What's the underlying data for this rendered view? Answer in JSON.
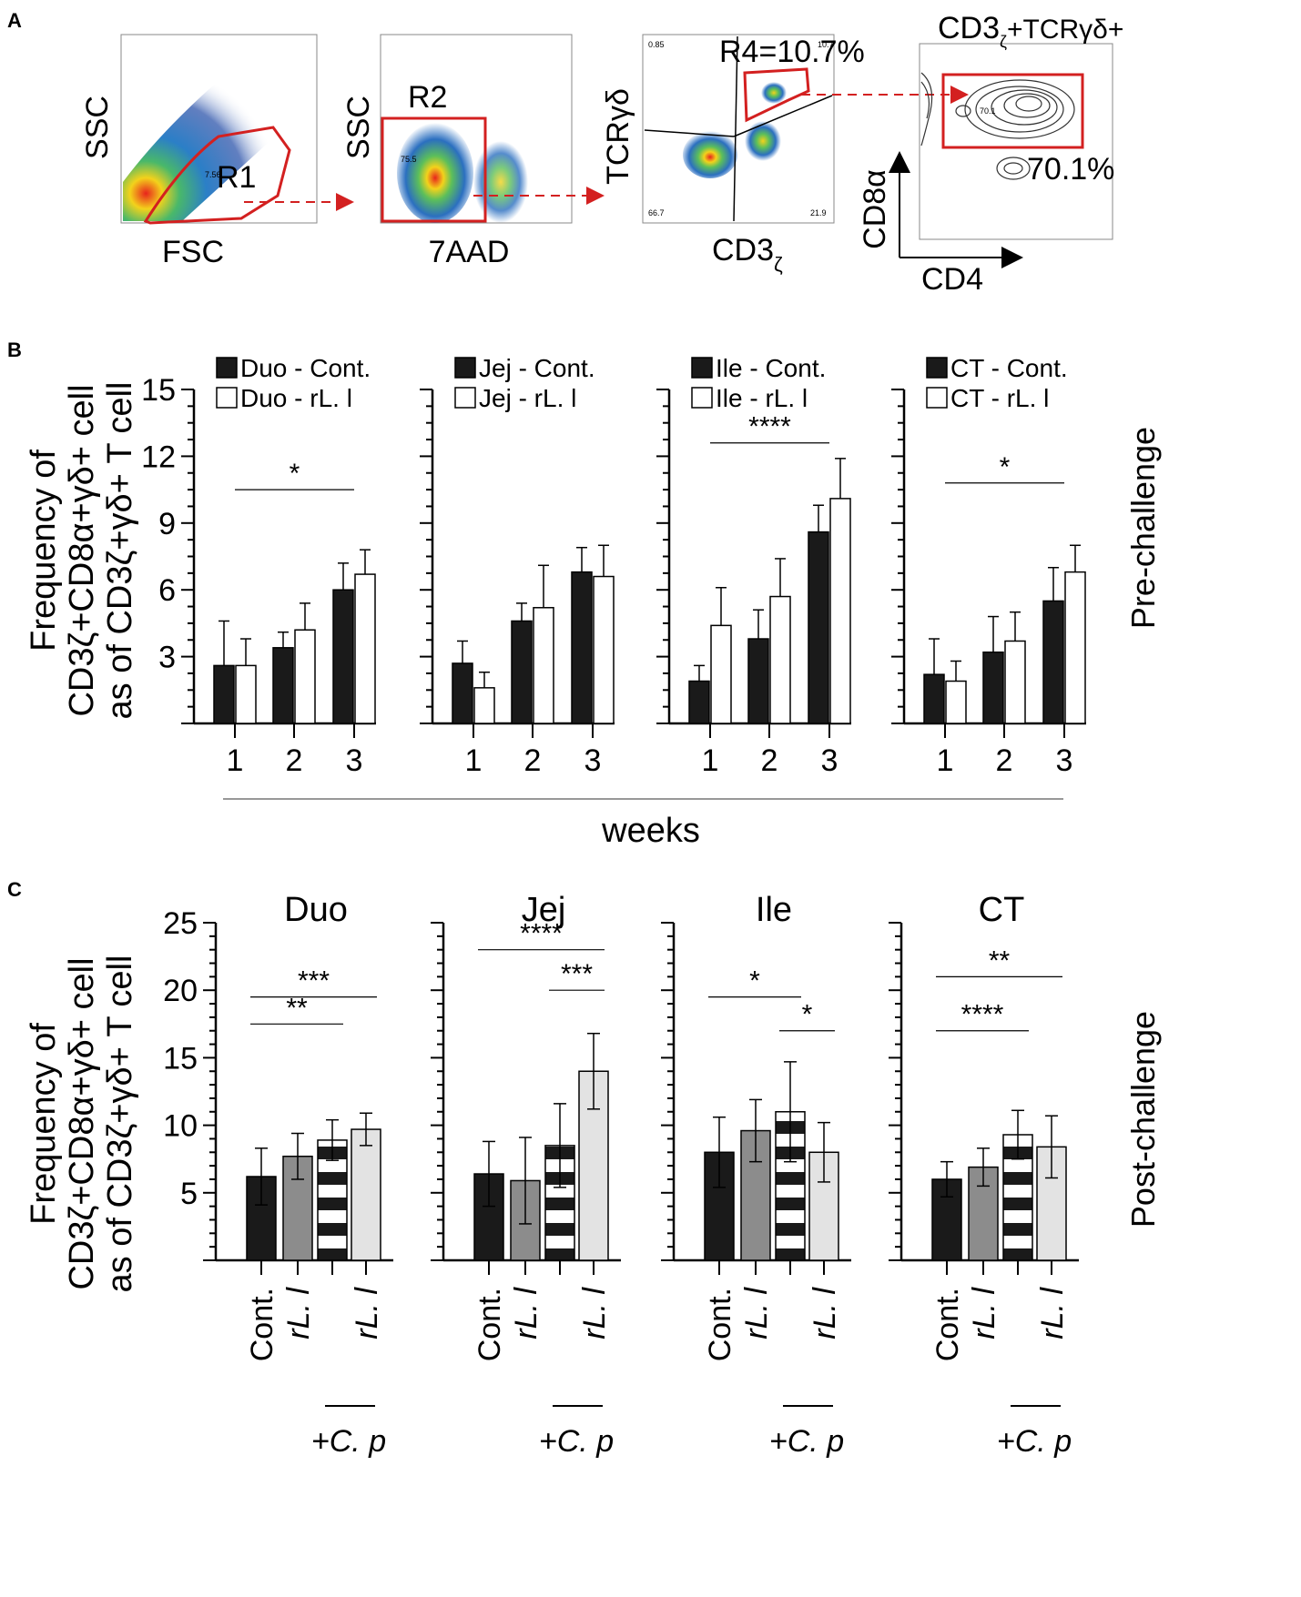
{
  "panels": {
    "a": "A",
    "b": "B",
    "c": "C"
  },
  "flow": {
    "plots": [
      {
        "xlabel": "FSC",
        "ylabel": "SSC",
        "gate": "R1",
        "gate_value": "7.56"
      },
      {
        "xlabel": "7AAD",
        "ylabel": "SSC",
        "gate": "R2",
        "gate_value": "75.5"
      },
      {
        "xlabel": "CD3",
        "xlabel_sub": "ζ",
        "ylabel": "TCRγδ",
        "gate": "R4=10.7%",
        "quadrants": [
          "0.85",
          "10.7",
          "66.7",
          "21.9"
        ]
      },
      {
        "title_main": "CD3",
        "title_sub": "ζ",
        "title_rest": "+TCRγδ+",
        "xlabel": "CD4",
        "ylabel": "CD8α",
        "gate_value": "70.1",
        "percent": "70.1%"
      }
    ]
  },
  "chart_data": [
    {
      "type": "bar",
      "panel": "B",
      "side_label": "Pre-challenge",
      "y_label_line1": "Frequency of",
      "y_label_line2": "CD3ζ+CD8α+γδ+ cell",
      "y_label_line3": "as of CD3ζ+γδ+ T cell",
      "xlabel": "weeks",
      "ylim": [
        0,
        15
      ],
      "yticks": [
        "3",
        "6",
        "9",
        "12",
        "15"
      ],
      "categories": [
        "1",
        "2",
        "3"
      ],
      "groups": [
        {
          "name": "Duo",
          "legend": [
            "Duo - Cont.",
            "Duo - rL. l"
          ],
          "series": [
            {
              "name": "Cont.",
              "values": [
                2.6,
                3.4,
                6.0
              ],
              "errors": [
                2.0,
                0.7,
                1.2
              ]
            },
            {
              "name": "rL. l",
              "values": [
                2.6,
                4.2,
                6.7
              ],
              "errors": [
                1.2,
                1.2,
                1.1
              ]
            }
          ],
          "sig": {
            "label": "*",
            "from": 0,
            "to": 2,
            "y": 10.5
          }
        },
        {
          "name": "Jej",
          "legend": [
            "Jej - Cont.",
            "Jej - rL. l"
          ],
          "series": [
            {
              "name": "Cont.",
              "values": [
                2.7,
                4.6,
                6.8
              ],
              "errors": [
                1.0,
                0.8,
                1.1
              ]
            },
            {
              "name": "rL. l",
              "values": [
                1.6,
                5.2,
                6.6
              ],
              "errors": [
                0.7,
                1.9,
                1.4
              ]
            }
          ],
          "sig": null
        },
        {
          "name": "Ile",
          "legend": [
            "Ile - Cont.",
            "Ile - rL. l"
          ],
          "series": [
            {
              "name": "Cont.",
              "values": [
                1.9,
                3.8,
                8.6
              ],
              "errors": [
                0.7,
                1.3,
                1.2
              ]
            },
            {
              "name": "rL. l",
              "values": [
                4.4,
                5.7,
                10.1
              ],
              "errors": [
                1.7,
                1.7,
                1.8
              ]
            }
          ],
          "sig": {
            "label": "****",
            "from": 0,
            "to": 2,
            "y": 12.6
          }
        },
        {
          "name": "CT",
          "legend": [
            "CT - Cont.",
            "CT - rL. l"
          ],
          "series": [
            {
              "name": "Cont.",
              "values": [
                2.2,
                3.2,
                5.5
              ],
              "errors": [
                1.6,
                1.6,
                1.5
              ]
            },
            {
              "name": "rL. l",
              "values": [
                1.9,
                3.7,
                6.8
              ],
              "errors": [
                0.9,
                1.3,
                1.2
              ]
            }
          ],
          "sig": {
            "label": "*",
            "from": 0,
            "to": 2,
            "y": 10.8
          }
        }
      ]
    },
    {
      "type": "bar",
      "panel": "C",
      "side_label": "Post-challenge",
      "y_label_line1": "Frequency of",
      "y_label_line2": "CD3ζ+CD8α+γδ+ cell",
      "y_label_line3": "as of CD3ζ+γδ+ T cell",
      "ylim": [
        0,
        25
      ],
      "yticks": [
        "5",
        "10",
        "15",
        "20",
        "25"
      ],
      "categories": [
        "Cont.",
        "rL. l",
        "",
        "rL. l"
      ],
      "group_label": "+C. p",
      "groups": [
        {
          "name": "Duo",
          "values": [
            6.2,
            7.7,
            8.9,
            9.7
          ],
          "errors": [
            2.1,
            1.7,
            1.5,
            1.2
          ],
          "sigs": [
            {
              "label": "**",
              "from": 0,
              "to": 2,
              "y": 17.5
            },
            {
              "label": "***",
              "from": 0,
              "to": 3,
              "y": 19.5
            }
          ]
        },
        {
          "name": "Jej",
          "values": [
            6.4,
            5.9,
            8.5,
            14.0
          ],
          "errors": [
            2.4,
            3.2,
            3.1,
            2.8
          ],
          "sigs": [
            {
              "label": "****",
              "from": 0,
              "to": 3,
              "y": 23.0
            },
            {
              "label": "***",
              "from": 2,
              "to": 3,
              "y": 20.0
            }
          ]
        },
        {
          "name": "Ile",
          "values": [
            8.0,
            9.6,
            11.0,
            8.0
          ],
          "errors": [
            2.6,
            2.3,
            3.7,
            2.2
          ],
          "sigs": [
            {
              "label": "*",
              "from": 0,
              "to": 2,
              "y": 19.5
            },
            {
              "label": "*",
              "from": 2,
              "to": 3,
              "y": 17.0
            }
          ]
        },
        {
          "name": "CT",
          "values": [
            6.0,
            6.9,
            9.3,
            8.4
          ],
          "errors": [
            1.3,
            1.4,
            1.8,
            2.3
          ],
          "sigs": [
            {
              "label": "****",
              "from": 0,
              "to": 2,
              "y": 17.0
            },
            {
              "label": "**",
              "from": 0,
              "to": 3,
              "y": 21.0
            }
          ]
        }
      ]
    }
  ],
  "colors": {
    "black_bar": "#1a1a1a",
    "gray_bar": "#8c8c8c",
    "light_bar": "#e3e3e3",
    "gate_red": "#d32020",
    "axis": "#000000"
  }
}
